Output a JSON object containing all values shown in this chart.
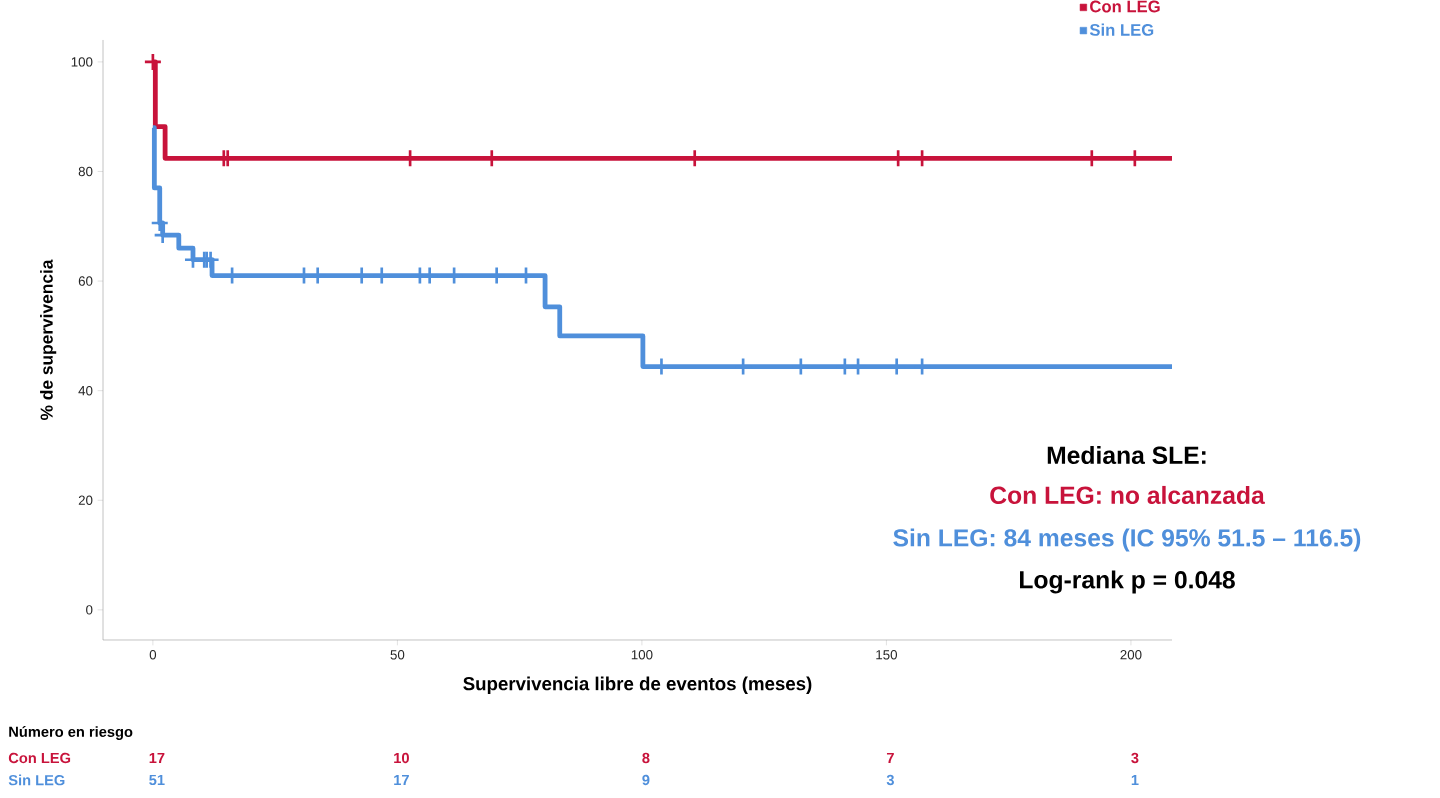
{
  "chart_data": {
    "type": "step",
    "xlabel": "Supervivencia libre de eventos (meses)",
    "ylabel": "% de supervivencia",
    "xlim": [
      -10.2,
      208.4
    ],
    "ylim": [
      -5.5,
      104
    ],
    "xticks": [
      0,
      50,
      100,
      150,
      200
    ],
    "yticks": [
      0,
      20,
      40,
      60,
      80,
      100
    ],
    "legend": "top right",
    "series": [
      {
        "name": "Con LEG",
        "color": "#c8133b",
        "marker": "none",
        "x": [
          0,
          0.5,
          2.5,
          208.4
        ],
        "values": [
          100,
          88.2,
          82.4,
          82.4
        ]
      },
      {
        "name": "Sin LEG",
        "color": "#4f8fdb",
        "marker": "none",
        "x": [
          0,
          0.3,
          1.4,
          2,
          5.3,
          8.2,
          12.1,
          80.2,
          83.2,
          100.2,
          208.4
        ],
        "values": [
          88,
          77,
          70.6,
          68.4,
          66,
          63.9,
          61,
          55.3,
          50,
          44.4,
          44.4
        ]
      },
      {
        "type": "scatter",
        "color": "#c8133b",
        "marker": "cross",
        "x": [
          0,
          14.5,
          15.3,
          52.6,
          69.3,
          110.8,
          152.4,
          157.3,
          192,
          200.8
        ],
        "values": [
          100,
          82.4,
          82.4,
          82.4,
          82.4,
          82.4,
          82.4,
          82.4,
          82.4,
          82.4
        ]
      },
      {
        "type": "scatter",
        "color": "#4f8fdb",
        "marker": "cross",
        "x": [
          1.4,
          2,
          8.2,
          10.5,
          11,
          11.8,
          16.2,
          30.9,
          33.7,
          42.7,
          46.8,
          54.6,
          56.6,
          61.6,
          70.3,
          76.3,
          104,
          120.7,
          132.5,
          141.5,
          144.2,
          152.1,
          157.3
        ],
        "values": [
          70.6,
          68.4,
          63.9,
          63.9,
          63.9,
          63.9,
          61,
          61,
          61,
          61,
          61,
          61,
          61,
          61,
          61,
          61,
          44.4,
          44.4,
          44.4,
          44.4,
          44.4,
          44.4,
          44.4
        ]
      }
    ],
    "annotations": [
      "Mediana SLE:",
      "Con LEG: no alcanzada",
      "Sin LEG: 84 meses (IC 95% 51.5 – 116.5)",
      "Log-rank p = 0.048",
      "Número en riesgo",
      "Con LEG",
      "17",
      "10",
      "8",
      "7",
      "3",
      "Sin LEG",
      "51",
      "17",
      "9",
      "3",
      "1"
    ]
  }
}
